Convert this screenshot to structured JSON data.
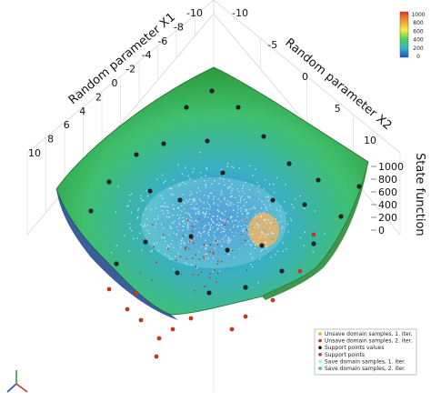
{
  "chart_data": {
    "type": "surface3d",
    "xlabel": "Random parameter X1",
    "ylabel": "Random parameter X2",
    "zlabel": "State function",
    "x_ticks": [
      "10",
      "8",
      "6",
      "4",
      "2",
      "0",
      "-2",
      "-4",
      "-6",
      "-8",
      "-10"
    ],
    "y_ticks": [
      "-10",
      "-5",
      "0",
      "5",
      "10"
    ],
    "z_ticks": [
      "1000",
      "800",
      "600",
      "400",
      "200",
      "0"
    ],
    "zlim": [
      0,
      1000
    ],
    "colorbar": {
      "ticks": [
        "1000",
        "800",
        "600",
        "400",
        "200",
        "0"
      ],
      "colors": [
        "#d83a1f",
        "#f29a2c",
        "#f4ef4a",
        "#52cf55",
        "#2fb6c9",
        "#1d52c8"
      ]
    },
    "legend": {
      "position": "bottom-right",
      "entries": [
        {
          "label": "Unsave domain samples, 1. iter.",
          "color": "#f4a23c"
        },
        {
          "label": "Unsave domain samples,  2. iter.",
          "color": "#c0391f"
        },
        {
          "label": "Support points values",
          "color": "#1a1a1a"
        },
        {
          "label": "Support points",
          "color": "#c0391f"
        },
        {
          "label": "Save domain samples, 1. iter.",
          "color": "#a8e4f2"
        },
        {
          "label": "Save domain samples,  2. iter.",
          "color": "#3fb3c9"
        }
      ]
    }
  }
}
